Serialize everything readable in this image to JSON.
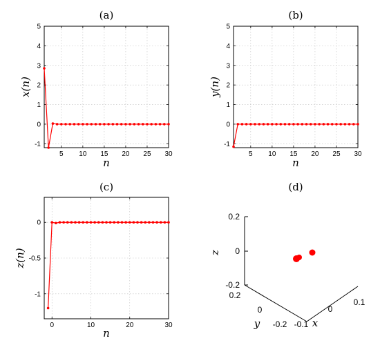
{
  "chart_data": [
    {
      "id": "a",
      "type": "line",
      "title": "(a)",
      "xlabel": "n",
      "ylabel": "x(n)",
      "xlim": [
        1,
        30
      ],
      "ylim": [
        -1.2,
        5
      ],
      "xticks": [
        5,
        10,
        15,
        20,
        25,
        30
      ],
      "yticks": [
        -1,
        0,
        1,
        2,
        3,
        4,
        5
      ],
      "grid": true,
      "color": "#ff0000",
      "x": [
        1,
        2,
        3,
        4,
        5,
        6,
        7,
        8,
        9,
        10,
        11,
        12,
        13,
        14,
        15,
        16,
        17,
        18,
        19,
        20,
        21,
        22,
        23,
        24,
        25,
        26,
        27,
        28,
        29,
        30
      ],
      "y": [
        2.85,
        -1.2,
        0.03,
        0,
        0,
        0,
        0,
        0,
        0,
        0,
        0,
        0,
        0,
        0,
        0,
        0,
        0,
        0,
        0,
        0,
        0,
        0,
        0,
        0,
        0,
        0,
        0,
        0,
        0,
        0
      ]
    },
    {
      "id": "b",
      "type": "line",
      "title": "(b)",
      "xlabel": "n",
      "ylabel": "y(n)",
      "xlim": [
        1,
        30
      ],
      "ylim": [
        -1.2,
        5
      ],
      "xticks": [
        5,
        10,
        15,
        20,
        25,
        30
      ],
      "yticks": [
        -1,
        0,
        1,
        2,
        3,
        4,
        5
      ],
      "grid": true,
      "color": "#ff0000",
      "x": [
        1,
        2,
        3,
        4,
        5,
        6,
        7,
        8,
        9,
        10,
        11,
        12,
        13,
        14,
        15,
        16,
        17,
        18,
        19,
        20,
        21,
        22,
        23,
        24,
        25,
        26,
        27,
        28,
        29,
        30
      ],
      "y": [
        -1.15,
        0,
        0,
        0,
        0,
        0,
        0,
        0,
        0,
        0,
        0,
        0,
        0,
        0,
        0,
        0,
        0,
        0,
        0,
        0,
        0,
        0,
        0,
        0,
        0,
        0,
        0,
        0,
        0,
        0
      ]
    },
    {
      "id": "c",
      "type": "line",
      "title": "(c)",
      "xlabel": "n",
      "ylabel": "z(n)",
      "xlim": [
        -2,
        30
      ],
      "ylim": [
        -1.35,
        0.35
      ],
      "xticks": [
        0,
        10,
        20,
        30
      ],
      "yticks": [
        -1,
        -0.5,
        0
      ],
      "grid": true,
      "color": "#ff0000",
      "x": [
        -1,
        0,
        1,
        2,
        3,
        4,
        5,
        6,
        7,
        8,
        9,
        10,
        11,
        12,
        13,
        14,
        15,
        16,
        17,
        18,
        19,
        20,
        21,
        22,
        23,
        24,
        25,
        26,
        27,
        28,
        29,
        30
      ],
      "y": [
        -1.2,
        0,
        -0.01,
        0,
        0,
        0,
        0,
        0,
        0,
        0,
        0,
        0,
        0,
        0,
        0,
        0,
        0,
        0,
        0,
        0,
        0,
        0,
        0,
        0,
        0,
        0,
        0,
        0,
        0,
        0,
        0,
        0
      ]
    },
    {
      "id": "d",
      "type": "scatter",
      "title": "(d)",
      "xlabel": "x",
      "ylabel": "y",
      "zlabel": "z",
      "zticks": [
        "0.2",
        "0",
        "-0.2"
      ],
      "yticks": [
        "0.2",
        "0",
        "-0.2"
      ],
      "xticks": [
        "-0.1",
        "0",
        "0.1"
      ],
      "grid": false,
      "color": "#ff0000"
    }
  ]
}
